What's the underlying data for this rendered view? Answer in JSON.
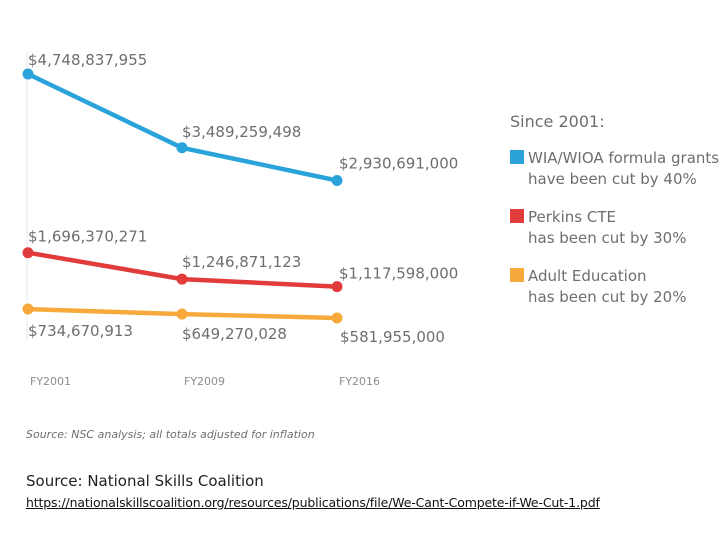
{
  "chart_data": {
    "type": "line",
    "categories": [
      "FY2001",
      "FY2009",
      "FY2016"
    ],
    "series": [
      {
        "name": "WIA/WIOA formula grants",
        "color": "#2aa3db",
        "values": [
          4748837955,
          3489259498,
          2930691000
        ],
        "labels": [
          "$4,748,837,955",
          "$3,489,259,498",
          "$2,930,691,000"
        ]
      },
      {
        "name": "Perkins CTE",
        "color": "#e23b3b",
        "values": [
          1696370271,
          1246871123,
          1117598000
        ],
        "labels": [
          "$1,696,370,271",
          "$1,246,871,123",
          "$1,117,598,000"
        ]
      },
      {
        "name": "Adult Education",
        "color": "#f7a93b",
        "values": [
          734670913,
          649270028,
          581955000
        ],
        "labels": [
          "$734,670,913",
          "$649,270,028",
          "$581,955,000"
        ]
      }
    ],
    "legend": {
      "title": "Since 2001:",
      "items": [
        {
          "line1": "WIA/WIOA formula grants",
          "line2": "have been cut by 40%",
          "color": "#2aa3db"
        },
        {
          "line1": "Perkins CTE",
          "line2": "has been cut by 30%",
          "color": "#e23b3b"
        },
        {
          "line1": "Adult Education",
          "line2": "has been cut by 20%",
          "color": "#f7a93b"
        }
      ]
    }
  },
  "note": "Source: NSC analysis; all totals adjusted for inflation",
  "source": {
    "label": "Source: National Skills Coalition",
    "url": "https://nationalskillscoalition.org/resources/publications/file/We-Cant-Compete-if-We-Cut-1.pdf"
  }
}
